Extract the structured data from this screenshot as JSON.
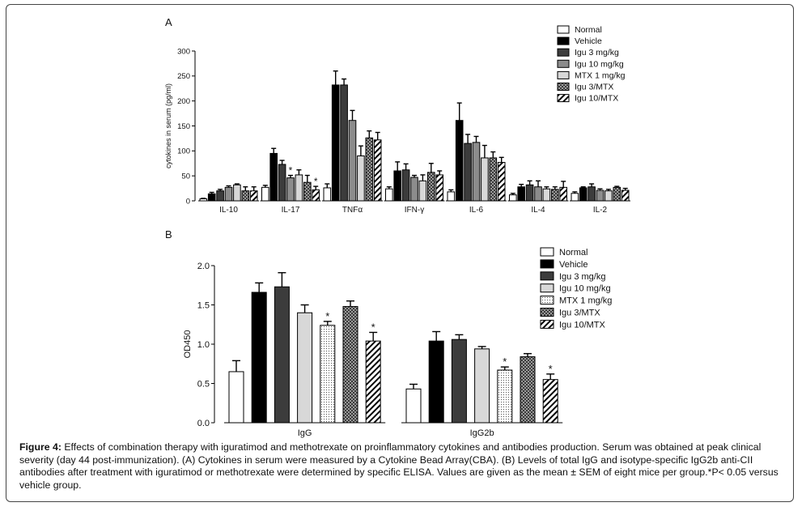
{
  "caption": {
    "label": "Figure 4:",
    "text": " Effects of combination therapy with iguratimod and methotrexate on proinflammatory cytokines and antibodies production. Serum was obtained at peak clinical severity (day 44 post-immunization). (A) Cytokines in serum were measured by a Cytokine Bead Array(CBA). (B) Levels of total IgG and isotype-specific IgG2b anti-CII antibodies after treatment with iguratimod or methotrexate were determined by specific ELISA. Values are given as the mean ± SEM of eight mice per group.*P< 0.05 versus vehicle group."
  },
  "chart_data": [
    {
      "panel": "A",
      "type": "bar",
      "ylabel": "cytokines in serum (pg/ml)",
      "xlabel": "",
      "ylim": [
        0,
        300
      ],
      "yticks": [
        "0",
        "50",
        "100",
        "150",
        "200",
        "250",
        "300"
      ],
      "categories": [
        "IL-10",
        "IL-17",
        "TNFα",
        "IFN-γ",
        "IL-6",
        "IL-4",
        "IL-2"
      ],
      "series": [
        {
          "name": "Normal",
          "style": "white",
          "values": [
            4,
            27,
            26,
            24,
            18,
            12,
            15
          ],
          "errors": [
            1,
            4,
            8,
            4,
            4,
            3,
            3
          ]
        },
        {
          "name": "Vehicle",
          "style": "black",
          "values": [
            14,
            95,
            232,
            60,
            161,
            28,
            26
          ],
          "errors": [
            3,
            10,
            28,
            18,
            35,
            5,
            2
          ]
        },
        {
          "name": "Igu 3 mg/kg",
          "style": "darkgray",
          "values": [
            20,
            73,
            232,
            62,
            115,
            32,
            28
          ],
          "errors": [
            3,
            8,
            12,
            12,
            18,
            8,
            6
          ]
        },
        {
          "name": "Igu 10 mg/kg",
          "style": "midgray",
          "values": [
            27,
            46,
            161,
            47,
            117,
            28,
            21
          ],
          "errors": [
            3,
            5,
            20,
            4,
            12,
            12,
            3
          ]
        },
        {
          "name": "MTX 1 mg/kg",
          "style": "lightgray",
          "values": [
            32,
            52,
            90,
            40,
            86,
            24,
            20
          ],
          "errors": [
            2,
            10,
            20,
            12,
            25,
            4,
            3
          ]
        },
        {
          "name": "Igu 3/MTX",
          "style": "checker",
          "values": [
            20,
            37,
            126,
            57,
            86,
            23,
            27
          ],
          "errors": [
            8,
            14,
            14,
            18,
            12,
            5,
            2
          ]
        },
        {
          "name": "Igu 10/MTX",
          "style": "hatch",
          "values": [
            20,
            22,
            122,
            52,
            77,
            27,
            21
          ],
          "errors": [
            8,
            7,
            15,
            8,
            10,
            12,
            4
          ]
        }
      ],
      "significance": [
        [],
        [
          "Igu 10 mg/kg",
          "Igu 10/MTX"
        ],
        [],
        [],
        [],
        [],
        []
      ],
      "marker": "*"
    },
    {
      "panel": "B",
      "type": "bar",
      "ylabel": "OD450",
      "xlabel": "",
      "ylim": [
        0,
        2.0
      ],
      "yticks": [
        "0.0",
        "0.5",
        "1.0",
        "1.5",
        "2.0"
      ],
      "categories": [
        "IgG",
        "IgG2b"
      ],
      "series": [
        {
          "name": "Normal",
          "style": "white",
          "values": [
            0.65,
            0.43
          ],
          "errors": [
            0.14,
            0.06
          ]
        },
        {
          "name": "Vehicle",
          "style": "black",
          "values": [
            1.66,
            1.04
          ],
          "errors": [
            0.12,
            0.12
          ]
        },
        {
          "name": "Igu 3 mg/kg",
          "style": "darkgray",
          "values": [
            1.73,
            1.06
          ],
          "errors": [
            0.18,
            0.06
          ]
        },
        {
          "name": "Igu 10 mg/kg",
          "style": "lightgray",
          "values": [
            1.4,
            0.94
          ],
          "errors": [
            0.1,
            0.03
          ]
        },
        {
          "name": "MTX 1 mg/kg",
          "style": "dots",
          "values": [
            1.24,
            0.67
          ],
          "errors": [
            0.05,
            0.04
          ]
        },
        {
          "name": "Igu 3/MTX",
          "style": "checker",
          "values": [
            1.48,
            0.84
          ],
          "errors": [
            0.07,
            0.04
          ]
        },
        {
          "name": "Igu 10/MTX",
          "style": "hatch",
          "values": [
            1.04,
            0.55
          ],
          "errors": [
            0.11,
            0.07
          ]
        }
      ],
      "significance": [
        [
          "MTX 1 mg/kg",
          "Igu 10/MTX"
        ],
        [
          "MTX 1 mg/kg",
          "Igu 10/MTX"
        ]
      ],
      "marker": "*"
    }
  ]
}
